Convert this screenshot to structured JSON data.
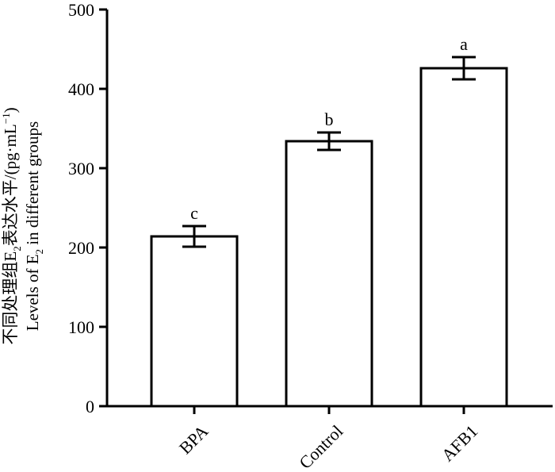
{
  "chart_data": {
    "type": "bar",
    "categories": [
      "BPA",
      "Control",
      "AFB1"
    ],
    "values": [
      214,
      334,
      426
    ],
    "errors": [
      13,
      11,
      14
    ],
    "significance": [
      "c",
      "b",
      "a"
    ],
    "ylim": [
      0,
      500
    ],
    "yticks": [
      "0",
      "100",
      "200",
      "300",
      "400",
      "500"
    ],
    "xlabel": "",
    "ylabel_line1_main": "不同处理组E",
    "ylabel_line1_sub": "2",
    "ylabel_line1_rest": "表达水平/(pg·mL",
    "ylabel_line1_sup": "−1",
    "ylabel_line1_end": ")",
    "ylabel_line2_main": "Levels of E",
    "ylabel_line2_sub": "2",
    "ylabel_line2_rest": " in different groups",
    "grid": false,
    "bar_fill": "#ffffff",
    "bar_stroke": "#000000"
  }
}
